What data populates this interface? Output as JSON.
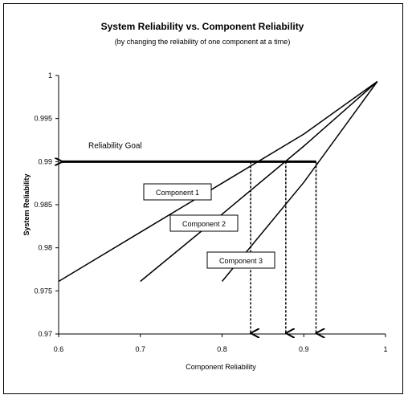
{
  "chart_data": {
    "type": "line",
    "title": "System Reliability vs. Component Reliability",
    "subtitle": "(by changing the reliability of one component at a time)",
    "xlabel": "Component Reliability",
    "ylabel": "System Reliability",
    "xlim": [
      0.6,
      1.0
    ],
    "ylim": [
      0.97,
      1.0
    ],
    "x_ticks": [
      "0.6",
      "0.7",
      "0.8",
      "0.9",
      "1"
    ],
    "y_ticks": [
      "0.97",
      "0.975",
      "0.98",
      "0.985",
      "0.99",
      "0.995",
      "1"
    ],
    "grid": false,
    "series": [
      {
        "name": "Component 1",
        "x": [
          0.6,
          0.7,
          0.8,
          0.9,
          0.99
        ],
        "y": [
          0.9761,
          0.9818,
          0.9875,
          0.9932,
          0.9993
        ]
      },
      {
        "name": "Component 2",
        "x": [
          0.7,
          0.8,
          0.9,
          0.99
        ],
        "y": [
          0.9761,
          0.9839,
          0.9918,
          0.9993
        ]
      },
      {
        "name": "Component 3",
        "x": [
          0.8,
          0.9,
          0.99
        ],
        "y": [
          0.9761,
          0.9876,
          0.9993
        ]
      }
    ],
    "goal": {
      "label": "Reliability Goal",
      "y": 0.99
    },
    "goal_intersections": [
      0.835,
      0.878,
      0.915
    ],
    "colors": {
      "line": "#000000",
      "background": "#ffffff"
    }
  }
}
